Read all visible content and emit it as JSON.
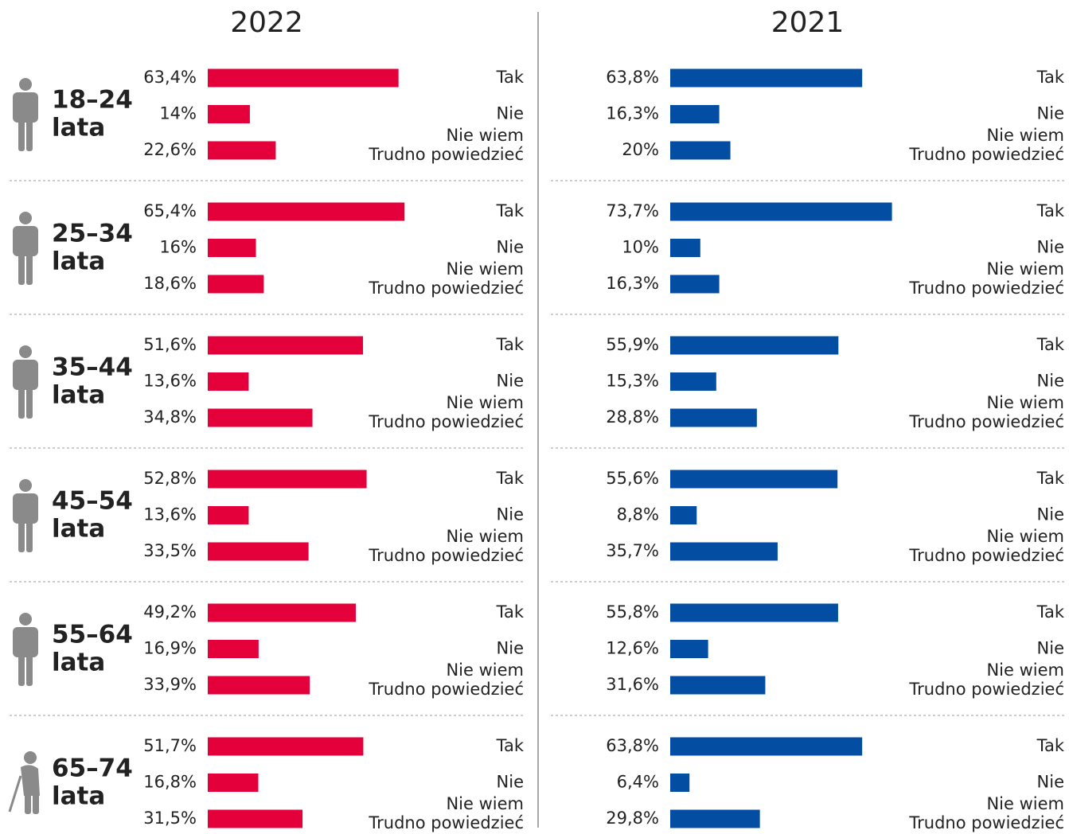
{
  "age_groups": [
    "18–24",
    "25–34",
    "35–44",
    "45–54",
    "55–64",
    "65–74"
  ],
  "age_unit": "lata",
  "chart_data": [
    {
      "type": "bar",
      "title": "2022",
      "color": "#e4003b",
      "xlim": [
        0,
        100
      ],
      "categories": [
        [
          "Tak"
        ],
        [
          "Nie"
        ],
        [
          "Nie wiem",
          "Trudno powiedzieć"
        ]
      ],
      "values": [
        [
          63.4,
          14,
          22.6
        ],
        [
          65.4,
          16,
          18.6
        ],
        [
          51.6,
          13.6,
          34.8
        ],
        [
          52.8,
          13.6,
          33.5
        ],
        [
          49.2,
          16.9,
          33.9
        ],
        [
          51.7,
          16.8,
          31.5
        ]
      ],
      "value_labels": [
        [
          "63,4%",
          "14%",
          "22,6%"
        ],
        [
          "65,4%",
          "16%",
          "18,6%"
        ],
        [
          "51,6%",
          "13,6%",
          "34,8%"
        ],
        [
          "52,8%",
          "13,6%",
          "33,5%"
        ],
        [
          "49,2%",
          "16,9%",
          "33,9%"
        ],
        [
          "51,7%",
          "16,8%",
          "31,5%"
        ]
      ]
    },
    {
      "type": "bar",
      "title": "2021",
      "color": "#034ea2",
      "xlim": [
        0,
        100
      ],
      "categories": [
        [
          "Tak"
        ],
        [
          "Nie"
        ],
        [
          "Nie wiem",
          "Trudno powiedzieć"
        ]
      ],
      "values": [
        [
          63.8,
          16.3,
          20
        ],
        [
          73.7,
          10,
          16.3
        ],
        [
          55.9,
          15.3,
          28.8
        ],
        [
          55.6,
          8.8,
          35.7
        ],
        [
          55.8,
          12.6,
          31.6
        ],
        [
          63.8,
          6.4,
          29.8
        ]
      ],
      "value_labels": [
        [
          "63,8%",
          "16,3%",
          "20%"
        ],
        [
          "73,7%",
          "10%",
          "16,3%"
        ],
        [
          "55,9%",
          "15,3%",
          "28,8%"
        ],
        [
          "55,6%",
          "8,8%",
          "35,7%"
        ],
        [
          "55,8%",
          "12,6%",
          "31,6%"
        ],
        [
          "63,8%",
          "6,4%",
          "29,8%"
        ]
      ]
    }
  ]
}
